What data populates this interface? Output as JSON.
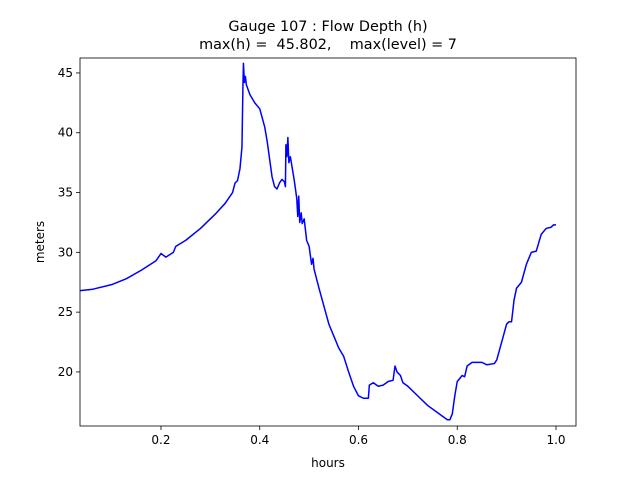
{
  "chart_data": {
    "type": "line",
    "title": "Gauge 107 : Flow Depth (h)",
    "subtitle": "max(h) =  45.802,    max(level) = 7",
    "x_label": "hours",
    "y_label": "meters",
    "color": "#0000ff",
    "xlim": [
      0.036,
      1.0405
    ],
    "ylim": [
      15.48,
      46.25
    ],
    "xticks": [
      0.2,
      0.4,
      0.6,
      0.8,
      {
        "value": 1.0,
        "label": "1.0"
      }
    ],
    "yticks": [
      20,
      25,
      30,
      35,
      40,
      45
    ],
    "x": [
      0.036,
      0.06,
      0.1,
      0.13,
      0.16,
      0.19,
      0.2,
      0.21,
      0.225,
      0.23,
      0.25,
      0.28,
      0.31,
      0.33,
      0.345,
      0.35,
      0.355,
      0.36,
      0.364,
      0.366,
      0.367,
      0.369,
      0.371,
      0.373,
      0.38,
      0.39,
      0.4,
      0.41,
      0.415,
      0.42,
      0.425,
      0.43,
      0.435,
      0.44,
      0.445,
      0.45,
      0.452,
      0.453,
      0.455,
      0.457,
      0.459,
      0.462,
      0.47,
      0.475,
      0.477,
      0.479,
      0.481,
      0.484,
      0.486,
      0.49,
      0.495,
      0.5,
      0.505,
      0.508,
      0.51,
      0.52,
      0.53,
      0.54,
      0.55,
      0.56,
      0.57,
      0.58,
      0.59,
      0.6,
      0.61,
      0.62,
      0.622,
      0.63,
      0.64,
      0.65,
      0.66,
      0.67,
      0.674,
      0.678,
      0.685,
      0.69,
      0.7,
      0.72,
      0.74,
      0.76,
      0.78,
      0.785,
      0.79,
      0.795,
      0.8,
      0.81,
      0.815,
      0.82,
      0.83,
      0.85,
      0.86,
      0.875,
      0.88,
      0.89,
      0.9,
      0.905,
      0.91,
      0.915,
      0.92,
      0.93,
      0.94,
      0.95,
      0.96,
      0.97,
      0.98,
      0.99,
      0.995,
      1.0
    ],
    "values": [
      26.8,
      26.9,
      27.3,
      27.8,
      28.5,
      29.3,
      29.9,
      29.6,
      30.0,
      30.5,
      31.0,
      32.0,
      33.2,
      34.1,
      35.0,
      35.8,
      36.0,
      37.0,
      38.8,
      44.0,
      45.8,
      44.2,
      44.7,
      44.0,
      43.2,
      42.5,
      42.0,
      40.5,
      39.3,
      37.8,
      36.3,
      35.5,
      35.3,
      35.8,
      36.1,
      35.9,
      35.5,
      39.0,
      38.0,
      39.6,
      37.5,
      38.0,
      36.0,
      34.5,
      33.0,
      34.7,
      32.5,
      33.3,
      32.4,
      32.8,
      31.0,
      30.5,
      29.0,
      29.5,
      28.6,
      27.0,
      25.5,
      24.0,
      23.0,
      22.0,
      21.3,
      20.0,
      18.8,
      18.0,
      17.8,
      17.8,
      18.9,
      19.1,
      18.8,
      18.9,
      19.2,
      19.3,
      20.5,
      20.0,
      19.7,
      19.1,
      18.8,
      18.0,
      17.2,
      16.6,
      16.0,
      16.0,
      16.5,
      18.0,
      19.2,
      19.7,
      19.6,
      20.5,
      20.8,
      20.8,
      20.6,
      20.7,
      21.0,
      22.5,
      24.0,
      24.2,
      24.2,
      26.0,
      27.0,
      27.5,
      29.0,
      30.0,
      30.1,
      31.5,
      32.0,
      32.1,
      32.3,
      32.3
    ]
  }
}
